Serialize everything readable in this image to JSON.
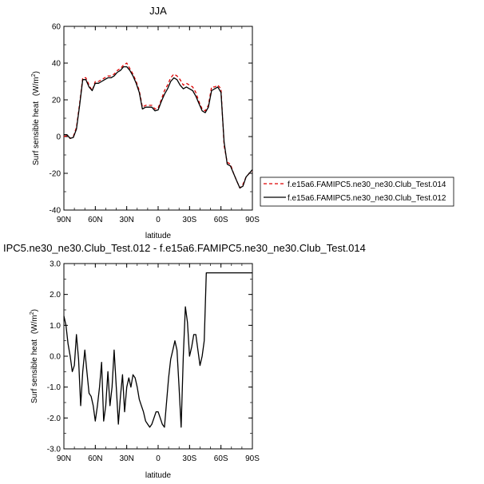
{
  "chart_data": [
    {
      "type": "line",
      "title": "JJA",
      "xlabel": "latitude",
      "ylabel": "Surf sensible heat",
      "ylabel_unit_base": "(W/m",
      "ylabel_unit_sup": "2",
      "ylabel_unit_close": ")",
      "xlim": [
        -90,
        90
      ],
      "ylim": [
        -40,
        60
      ],
      "xticks": [
        "90N",
        "60N",
        "30N",
        "0",
        "30S",
        "60S",
        "90S"
      ],
      "yticks": [
        "-40",
        "-20",
        "0",
        "20",
        "40",
        "60"
      ],
      "legend_position": "right",
      "series": [
        {
          "name": "f.e15a6.FAMIPC5.ne30_ne30.Club_Test.014",
          "color": "#dd0000",
          "dash": "dashed",
          "x": [
            -90,
            -87,
            -84,
            -81,
            -78,
            -75,
            -72,
            -69,
            -66,
            -63,
            -60,
            -57,
            -54,
            -51,
            -48,
            -45,
            -42,
            -39,
            -36,
            -33,
            -30,
            -27,
            -24,
            -21,
            -18,
            -15,
            -12,
            -9,
            -6,
            -3,
            0,
            3,
            6,
            9,
            12,
            15,
            18,
            21,
            24,
            27,
            30,
            33,
            36,
            39,
            42,
            45,
            48,
            51,
            54,
            57,
            60,
            63,
            66,
            69,
            72,
            75,
            78,
            81,
            84,
            87,
            90
          ],
          "y": [
            0,
            0.5,
            -1,
            0,
            5,
            18,
            32,
            32,
            28,
            25,
            30,
            30,
            31,
            32,
            33,
            33,
            34,
            36,
            37,
            39,
            40,
            37,
            34,
            30,
            25,
            16,
            17,
            17,
            17,
            15,
            15.5,
            20,
            25,
            28,
            32,
            34,
            33,
            31,
            28,
            29,
            28,
            27,
            24,
            19,
            15,
            14,
            17,
            27,
            27,
            28,
            26,
            -5,
            -14,
            -15,
            -20,
            -24,
            -28,
            -26,
            -22,
            -20,
            -19
          ]
        },
        {
          "name": "f.e15a6.FAMIPC5.ne30_ne30.Club_Test.012",
          "color": "#000000",
          "dash": "solid",
          "x": [
            -90,
            -87,
            -84,
            -81,
            -78,
            -75,
            -72,
            -69,
            -66,
            -63,
            -60,
            -57,
            -54,
            -51,
            -48,
            -45,
            -42,
            -39,
            -36,
            -33,
            -30,
            -27,
            -24,
            -21,
            -18,
            -15,
            -12,
            -9,
            -6,
            -3,
            0,
            3,
            6,
            9,
            12,
            15,
            18,
            21,
            24,
            27,
            30,
            33,
            36,
            39,
            42,
            45,
            48,
            51,
            54,
            57,
            60,
            63,
            66,
            69,
            72,
            75,
            78,
            81,
            84,
            87,
            90
          ],
          "y": [
            1,
            1,
            -1,
            -0.5,
            4,
            17,
            31,
            31,
            27,
            25,
            29,
            29,
            30,
            31,
            32,
            32,
            33,
            35,
            36,
            38,
            38,
            36,
            33,
            29,
            24,
            15,
            16,
            16,
            16,
            14,
            14.5,
            19,
            23,
            26,
            30,
            32,
            31,
            28,
            26,
            27,
            26,
            25,
            22,
            18,
            14,
            13,
            16,
            25,
            26,
            27,
            24,
            -3,
            -15,
            -16,
            -20,
            -24,
            -28,
            -27,
            -22,
            -20,
            -18
          ]
        }
      ]
    },
    {
      "type": "line",
      "title": "IPC5.ne30_ne30.Club_Test.012 - f.e15a6.FAMIPC5.ne30_ne30.Club_Test.014",
      "xlabel": "latitude",
      "ylabel": "Surf sensible heat",
      "ylabel_unit_base": "(W/m",
      "ylabel_unit_sup": "2",
      "ylabel_unit_close": ")",
      "xlim": [
        -90,
        90
      ],
      "ylim": [
        -3,
        3
      ],
      "xticks": [
        "90N",
        "60N",
        "30N",
        "0",
        "30S",
        "60S",
        "90S"
      ],
      "yticks": [
        "-3.0",
        "-2.0",
        "-1.0",
        "0.0",
        "1.0",
        "2.0",
        "3.0"
      ],
      "series": [
        {
          "color": "#000000",
          "x": [
            -90,
            -88,
            -86,
            -84,
            -82,
            -80,
            -78,
            -76,
            -74,
            -72,
            -70,
            -68,
            -66,
            -64,
            -62,
            -60,
            -58,
            -56,
            -54,
            -52,
            -50,
            -48,
            -46,
            -44,
            -42,
            -40,
            -38,
            -36,
            -34,
            -32,
            -30,
            -28,
            -26,
            -24,
            -22,
            -20,
            -18,
            -16,
            -14,
            -12,
            -10,
            -8,
            -6,
            -4,
            -2,
            0,
            2,
            4,
            6,
            8,
            10,
            12,
            14,
            16,
            18,
            20,
            22,
            24,
            26,
            28,
            30,
            32,
            34,
            36,
            38,
            40,
            42,
            44,
            46,
            48,
            50,
            52,
            54,
            56,
            58,
            60,
            62,
            64,
            66,
            68,
            70,
            72,
            74,
            76,
            78,
            80,
            82,
            84,
            86,
            88,
            90
          ],
          "y": [
            1.3,
            1.0,
            0.4,
            0.0,
            -0.5,
            -0.3,
            0.7,
            -0.1,
            -1.6,
            -0.5,
            0.2,
            -0.5,
            -1.2,
            -1.3,
            -1.6,
            -2.1,
            -1.6,
            -1.0,
            -0.2,
            -2.1,
            -1.6,
            -0.5,
            -1.6,
            -1.0,
            0.2,
            -1.0,
            -2.2,
            -1.3,
            -0.6,
            -1.8,
            -1.0,
            -0.7,
            -1.0,
            -0.6,
            -0.7,
            -1.0,
            -1.4,
            -1.6,
            -1.8,
            -2.1,
            -2.2,
            -2.3,
            -2.2,
            -2.0,
            -1.8,
            -1.8,
            -2.0,
            -2.2,
            -2.3,
            -1.5,
            -0.7,
            -0.1,
            0.2,
            0.5,
            0.2,
            -1.0,
            -2.3,
            0.0,
            1.6,
            1.1,
            0.0,
            0.3,
            0.7,
            0.7,
            0.2,
            -0.3,
            0.0,
            0.5,
            2.7,
            2.7,
            2.7,
            2.7,
            2.7,
            2.7,
            2.7,
            2.7,
            2.7,
            2.7,
            2.7,
            2.7,
            2.7,
            2.7,
            2.7,
            2.7,
            2.7,
            2.7,
            2.7,
            2.7,
            2.7,
            2.7,
            2.7
          ]
        }
      ]
    }
  ]
}
